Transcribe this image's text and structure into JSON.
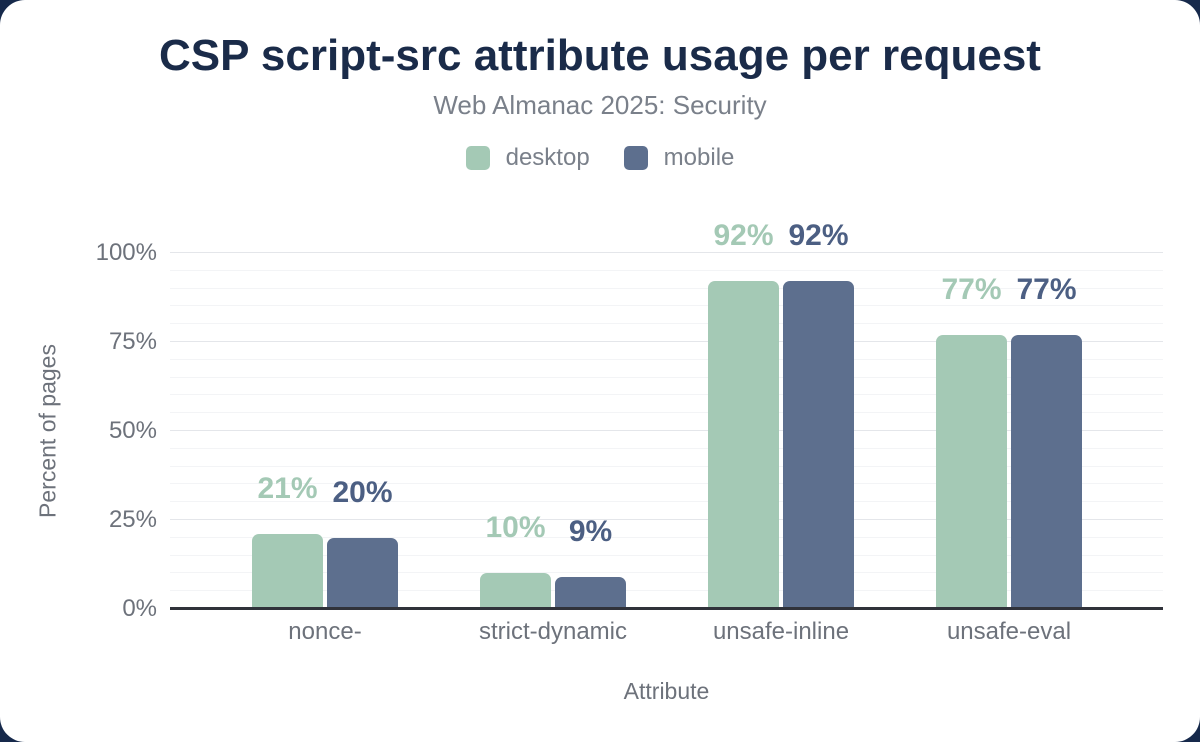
{
  "colors": {
    "background": "#16294b",
    "card": "#ffffff",
    "title": "#1a2b49",
    "muted": "#7a808a",
    "ticks": "#6d727b",
    "axis_line": "#30323a",
    "grid_major": "#e4e6ea",
    "grid_minor": "#f3f4f6",
    "desktop": "#a4c9b5",
    "mobile": "#5d6f8e"
  },
  "chart_data": {
    "type": "bar",
    "title": "CSP script-src attribute usage per request",
    "subtitle": "Web Almanac 2025: Security",
    "xlabel": "Attribute",
    "ylabel": "Percent of pages",
    "categories": [
      "nonce-",
      "strict-dynamic",
      "unsafe-inline",
      "unsafe-eval"
    ],
    "series": [
      {
        "name": "desktop",
        "color": "#a4c9b5",
        "label_color": "#a4c9b5",
        "values": [
          21,
          10,
          92,
          77
        ],
        "value_labels": [
          "21%",
          "10%",
          "92%",
          "77%"
        ]
      },
      {
        "name": "mobile",
        "color": "#5d6f8e",
        "label_color": "#4c5f83",
        "values": [
          20,
          9,
          92,
          77
        ],
        "value_labels": [
          "20%",
          "9%",
          "92%",
          "77%"
        ]
      }
    ],
    "y_ticks": [
      {
        "label": "0%",
        "value": 0
      },
      {
        "label": "25%",
        "value": 25
      },
      {
        "label": "50%",
        "value": 50
      },
      {
        "label": "75%",
        "value": 75
      },
      {
        "label": "100%",
        "value": 100
      }
    ],
    "ylim": [
      0,
      100
    ],
    "major_grid_step": 25,
    "minor_grid_step": 5,
    "grid": true,
    "legend_position": "top"
  }
}
